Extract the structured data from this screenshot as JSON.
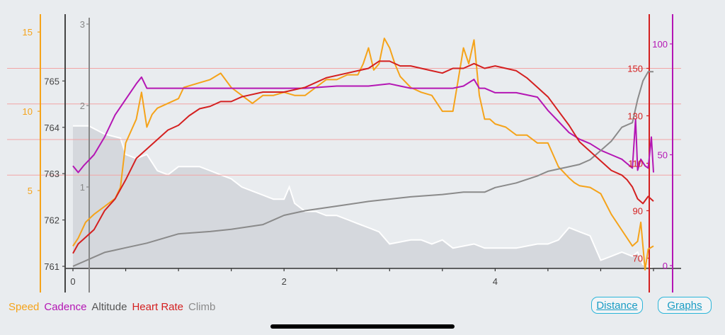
{
  "legend": {
    "speed": "Speed",
    "cadence": "Cadence",
    "altitude": "Altitude",
    "heart_rate": "Heart Rate",
    "climb": "Climb"
  },
  "buttons": {
    "distance": "Distance",
    "graphs": "Graphs"
  },
  "colors": {
    "speed": "#f5a31a",
    "cadence": "#b416b4",
    "altitude": "#555555",
    "heart_rate": "#d42020",
    "climb": "#8a8a8a",
    "climb_fill": "#d5d8dd",
    "climb_edge": "#ffffff",
    "link": "#1a9cc4"
  },
  "chart_data": {
    "type": "line",
    "xlim": [
      0,
      5.5
    ],
    "x_ticks": [
      "0",
      "2",
      "4"
    ],
    "axes": {
      "speed": {
        "range": [
          0,
          15.5
        ],
        "ticks": [
          "5",
          "10",
          "15"
        ]
      },
      "altitude": {
        "range": [
          761,
          765.8
        ],
        "ticks": [
          "761",
          "762",
          "763",
          "764",
          "765"
        ]
      },
      "climb": {
        "range": [
          0,
          3
        ],
        "ticks": [
          "1",
          "2",
          "3"
        ]
      },
      "heart_rate": {
        "range": [
          60,
          160
        ],
        "ticks": [
          "70",
          "90",
          "110",
          "130",
          "150"
        ]
      },
      "cadence": {
        "range": [
          0,
          100
        ],
        "ticks": [
          "0",
          "50",
          "100"
        ]
      }
    },
    "heart_rate_gridlines": [
      105,
      120,
      135,
      150
    ],
    "series": [
      {
        "name": "Speed",
        "axis": "speed",
        "x": [
          0.0,
          0.05,
          0.12,
          0.2,
          0.3,
          0.4,
          0.45,
          0.5,
          0.6,
          0.65,
          0.7,
          0.75,
          0.8,
          1.0,
          1.05,
          1.2,
          1.3,
          1.4,
          1.5,
          1.6,
          1.7,
          1.8,
          1.9,
          2.0,
          2.1,
          2.2,
          2.3,
          2.4,
          2.5,
          2.6,
          2.7,
          2.75,
          2.8,
          2.85,
          2.9,
          2.95,
          3.0,
          3.05,
          3.1,
          3.2,
          3.3,
          3.4,
          3.5,
          3.6,
          3.65,
          3.7,
          3.75,
          3.8,
          3.85,
          3.9,
          3.95,
          4.0,
          4.1,
          4.2,
          4.3,
          4.4,
          4.5,
          4.6,
          4.7,
          4.75,
          4.8,
          4.9,
          5.0,
          5.1,
          5.2,
          5.3,
          5.35,
          5.38,
          5.42,
          5.45,
          5.5
        ],
        "y": [
          1.5,
          2.0,
          3.0,
          3.5,
          4.0,
          4.5,
          5.2,
          8.0,
          9.5,
          11.2,
          9.0,
          9.8,
          10.2,
          10.8,
          11.5,
          11.8,
          12.0,
          12.4,
          11.5,
          11.0,
          10.5,
          11.0,
          11.0,
          11.2,
          11.0,
          11.0,
          11.5,
          12.0,
          12.0,
          12.3,
          12.3,
          13.0,
          14.0,
          12.6,
          13.0,
          14.6,
          14.0,
          13.0,
          12.2,
          11.5,
          11.2,
          11.0,
          10.0,
          10.0,
          12.0,
          14.0,
          13.0,
          14.5,
          11.0,
          9.5,
          9.5,
          9.2,
          9.0,
          8.5,
          8.5,
          8.0,
          8.0,
          6.5,
          5.8,
          5.5,
          5.3,
          5.2,
          4.8,
          3.5,
          2.5,
          1.5,
          1.8,
          3.0,
          0.0,
          1.3,
          1.5
        ]
      },
      {
        "name": "Cadence",
        "axis": "cadence",
        "x": [
          0.0,
          0.05,
          0.1,
          0.2,
          0.3,
          0.4,
          0.5,
          0.6,
          0.65,
          0.7,
          0.8,
          1.0,
          1.2,
          1.5,
          1.8,
          2.0,
          2.2,
          2.5,
          2.8,
          3.0,
          3.1,
          3.2,
          3.4,
          3.6,
          3.7,
          3.8,
          3.85,
          3.9,
          4.0,
          4.2,
          4.4,
          4.5,
          4.6,
          4.7,
          4.8,
          4.9,
          5.0,
          5.1,
          5.2,
          5.25,
          5.3,
          5.33,
          5.35,
          5.38,
          5.42,
          5.45,
          5.48,
          5.5
        ],
        "y": [
          45,
          42,
          45,
          50,
          58,
          68,
          75,
          82,
          85,
          80,
          80,
          80,
          80,
          80,
          80,
          80,
          80,
          81,
          81,
          82,
          81,
          80,
          80,
          80,
          81,
          84,
          80,
          80,
          78,
          78,
          76,
          70,
          65,
          60,
          57,
          55,
          52,
          50,
          48,
          46,
          44,
          66,
          43,
          48,
          45,
          44,
          58,
          42
        ]
      },
      {
        "name": "Altitude",
        "axis": "altitude",
        "x": [
          0.0,
          0.05,
          0.1,
          0.2,
          0.3,
          0.4,
          0.5,
          0.7,
          1.0,
          1.3,
          1.5,
          1.8,
          2.0,
          2.2,
          2.5,
          2.8,
          3.0,
          3.2,
          3.5,
          3.7,
          3.9,
          4.0,
          4.2,
          4.4,
          4.5,
          4.6,
          4.7,
          4.8,
          4.9,
          5.0,
          5.1,
          5.2,
          5.3,
          5.35,
          5.4,
          5.45,
          5.5
        ],
        "y": [
          761.0,
          761.05,
          761.1,
          761.2,
          761.3,
          761.35,
          761.4,
          761.5,
          761.7,
          761.75,
          761.8,
          761.9,
          762.1,
          762.2,
          762.3,
          762.4,
          762.45,
          762.5,
          762.55,
          762.6,
          762.6,
          762.7,
          762.8,
          762.95,
          763.05,
          763.1,
          763.15,
          763.2,
          763.3,
          763.5,
          763.7,
          764.0,
          764.1,
          764.6,
          765.0,
          765.2,
          765.2
        ]
      },
      {
        "name": "Heart Rate",
        "axis": "heart_rate",
        "x": [
          0.0,
          0.05,
          0.1,
          0.2,
          0.3,
          0.4,
          0.5,
          0.6,
          0.7,
          0.8,
          0.9,
          1.0,
          1.1,
          1.2,
          1.3,
          1.4,
          1.5,
          1.6,
          1.8,
          2.0,
          2.2,
          2.4,
          2.6,
          2.8,
          2.9,
          3.0,
          3.1,
          3.2,
          3.3,
          3.4,
          3.5,
          3.6,
          3.7,
          3.8,
          3.9,
          4.0,
          4.1,
          4.2,
          4.3,
          4.4,
          4.5,
          4.6,
          4.7,
          4.8,
          4.9,
          5.0,
          5.1,
          5.2,
          5.25,
          5.3,
          5.35,
          5.4,
          5.45,
          5.5
        ],
        "y": [
          72,
          76,
          78,
          82,
          90,
          95,
          103,
          112,
          116,
          120,
          124,
          126,
          130,
          133,
          134,
          136,
          136,
          138,
          140,
          140,
          142,
          146,
          148,
          150,
          153,
          153,
          151,
          151,
          150,
          149,
          148,
          150,
          150,
          152,
          150,
          151,
          150,
          149,
          146,
          142,
          138,
          132,
          126,
          119,
          115,
          111,
          107,
          105,
          103,
          100,
          95,
          93,
          96,
          94
        ]
      },
      {
        "name": "Climb",
        "axis": "climb",
        "kind": "area",
        "x": [
          0.0,
          0.15,
          0.3,
          0.45,
          0.5,
          0.6,
          0.7,
          0.8,
          0.9,
          1.0,
          1.2,
          1.3,
          1.4,
          1.5,
          1.6,
          1.7,
          1.8,
          1.9,
          2.0,
          2.05,
          2.1,
          2.2,
          2.3,
          2.4,
          2.5,
          2.6,
          2.7,
          2.8,
          2.9,
          3.0,
          3.2,
          3.3,
          3.4,
          3.5,
          3.6,
          3.8,
          3.9,
          4.0,
          4.2,
          4.4,
          4.5,
          4.6,
          4.7,
          4.8,
          4.9,
          5.0,
          5.1,
          5.2,
          5.3,
          5.35,
          5.4,
          5.5
        ],
        "y": [
          1.75,
          1.75,
          1.65,
          1.6,
          1.4,
          1.35,
          1.4,
          1.2,
          1.15,
          1.25,
          1.25,
          1.2,
          1.15,
          1.1,
          1.0,
          0.95,
          0.9,
          0.85,
          0.85,
          1.0,
          0.8,
          0.7,
          0.7,
          0.65,
          0.65,
          0.6,
          0.55,
          0.5,
          0.45,
          0.3,
          0.35,
          0.35,
          0.3,
          0.35,
          0.25,
          0.3,
          0.25,
          0.25,
          0.25,
          0.3,
          0.3,
          0.35,
          0.5,
          0.45,
          0.4,
          0.1,
          0.15,
          0.2,
          0.15,
          0.2,
          0.05,
          0.0
        ]
      }
    ]
  }
}
